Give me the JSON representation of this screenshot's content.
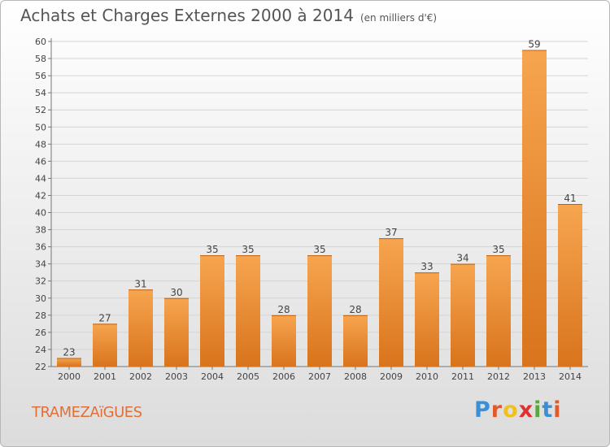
{
  "title": "Achats et Charges Externes 2000 à 2014",
  "subtitle": "(en milliers d'€)",
  "commune": "TRAMEZAïGUES",
  "logo": {
    "text": "Proxiti",
    "letters": [
      "P",
      "r",
      "o",
      "x",
      "i",
      "t",
      "i"
    ],
    "colors": [
      "#3b8fd6",
      "#e05a2a",
      "#f0c020",
      "#e03030",
      "#5aa83a",
      "#3b8fd6",
      "#e05a2a"
    ]
  },
  "colors": {
    "bar_top": "#f7a550",
    "bar_bottom": "#d8741c",
    "grid": "#d4d4d4"
  },
  "chart_data": {
    "type": "bar",
    "categories": [
      "2000",
      "2001",
      "2002",
      "2003",
      "2004",
      "2005",
      "2006",
      "2007",
      "2008",
      "2009",
      "2010",
      "2011",
      "2012",
      "2013",
      "2014"
    ],
    "values": [
      23,
      27,
      31,
      30,
      35,
      35,
      28,
      35,
      28,
      37,
      33,
      34,
      35,
      59,
      41
    ],
    "ylim": [
      22,
      60
    ],
    "yticks": [
      22,
      24,
      26,
      28,
      30,
      32,
      34,
      36,
      38,
      40,
      42,
      44,
      46,
      48,
      50,
      52,
      54,
      56,
      58,
      60
    ],
    "grid": true,
    "legend": "none"
  }
}
